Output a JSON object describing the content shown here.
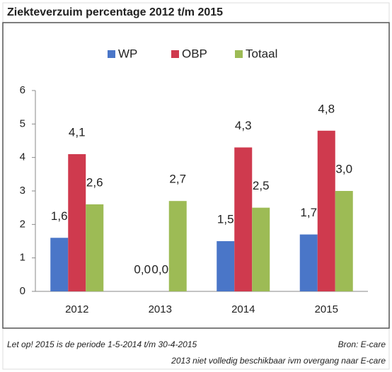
{
  "chart_data": {
    "type": "bar",
    "title": "Ziekteverzuim percentage 2012 t/m 2015",
    "categories": [
      "2012",
      "2013",
      "2014",
      "2015"
    ],
    "series": [
      {
        "name": "WP",
        "color": "#4a76c8",
        "values": [
          1.6,
          0,
          1.5,
          1.7
        ],
        "value_labels": [
          "1,6",
          "0,0",
          "1,5",
          "1,7"
        ]
      },
      {
        "name": "OBP",
        "color": "#cf3a4e",
        "values": [
          4.1,
          0,
          4.3,
          4.8
        ],
        "value_labels": [
          "4,1",
          "0,0",
          "4,3",
          "4,8"
        ]
      },
      {
        "name": "Totaal",
        "color": "#9dbb55",
        "values": [
          2.6,
          2.7,
          2.5,
          3.0
        ],
        "value_labels": [
          "2,6",
          "2,7",
          "2,5",
          "3,0"
        ]
      }
    ],
    "ylim": [
      0,
      6
    ],
    "yticks": [
      0,
      1,
      2,
      3,
      4,
      5,
      6
    ],
    "grid": false,
    "legend": "top",
    "annotations": [
      "Let op! 2015 is de periode 1-5-2014 t/m 30-4-2015",
      "Bron: E-care",
      "2013 niet volledig beschikbaar ivm overgang naar E-care"
    ]
  }
}
